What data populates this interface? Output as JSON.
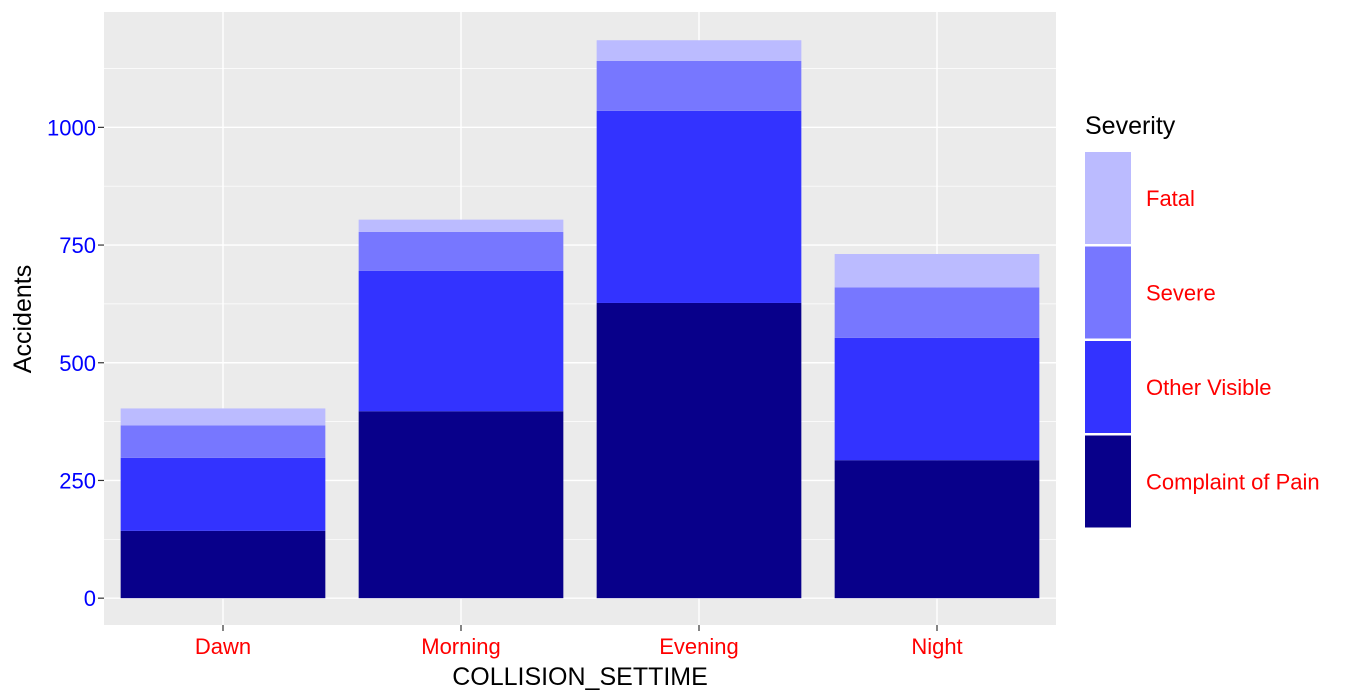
{
  "chart_data": {
    "type": "bar",
    "stacked": true,
    "categories": [
      "Dawn",
      "Morning",
      "Evening",
      "Night"
    ],
    "series": [
      {
        "name": "Complaint of Pain",
        "color": "#08008A",
        "values": [
          143,
          397,
          627,
          293
        ]
      },
      {
        "name": "Other Visible",
        "color": "#3333FF",
        "values": [
          155,
          298,
          408,
          260
        ]
      },
      {
        "name": "Severe",
        "color": "#7777FF",
        "values": [
          69,
          83,
          106,
          107
        ]
      },
      {
        "name": "Fatal",
        "color": "#BBBBFF",
        "values": [
          36,
          26,
          44,
          71
        ]
      }
    ],
    "xlabel": "COLLISION_SETTIME",
    "ylabel": "Accidents",
    "ylim": [
      -57,
      1245
    ],
    "yticks": [
      0,
      250,
      500,
      750,
      1000
    ],
    "ytick_labels": [
      "0",
      "250",
      "500",
      "750",
      "1000"
    ],
    "grid": true,
    "legend": {
      "title": "Severity",
      "position": "right"
    },
    "colors": {
      "panel_bg": "#EBEBEB",
      "grid_major": "#FFFFFF",
      "ytick_text": "#0000FF",
      "xtick_text": "#FF0000",
      "legend_text": "#FF0000"
    }
  }
}
